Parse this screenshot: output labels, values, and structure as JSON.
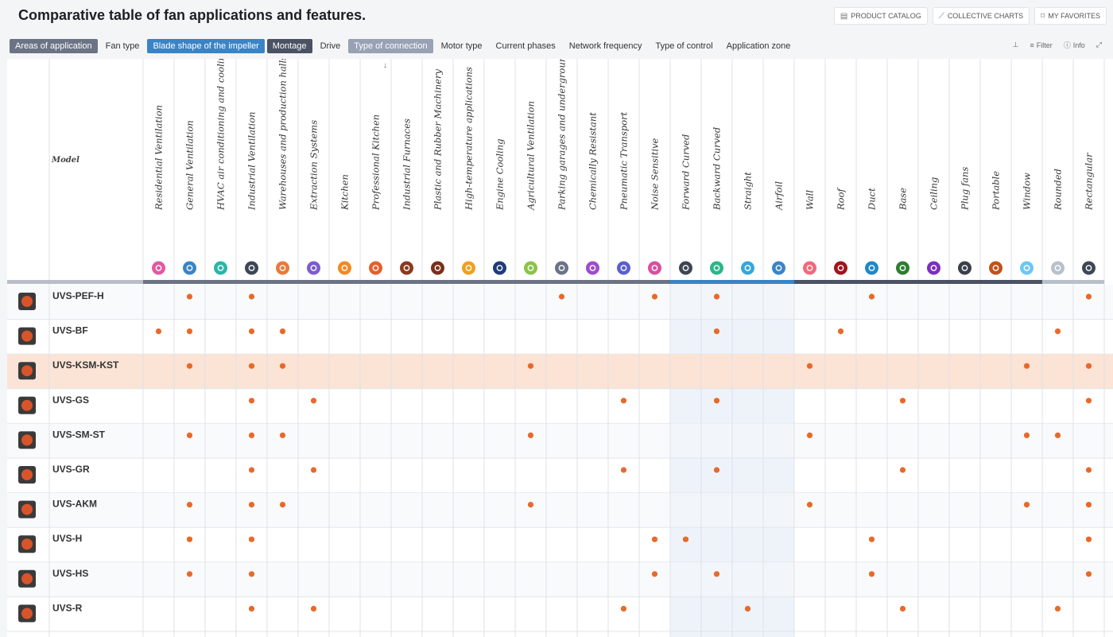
{
  "header": {
    "title": "Comparative table of fan applications and features.",
    "actions": [
      {
        "label": "PRODUCT CATALOG",
        "icon": "catalog-icon"
      },
      {
        "label": "COLLECTIVE CHARTS",
        "icon": "chart-icon"
      },
      {
        "label": "MY FAVORITES",
        "icon": "bookmark-icon"
      }
    ]
  },
  "filters": [
    {
      "label": "Areas of application",
      "state": "active-dark"
    },
    {
      "label": "Fan type",
      "state": "inactive"
    },
    {
      "label": "Blade shape of the impeller",
      "state": "active-blue"
    },
    {
      "label": "Montage",
      "state": "active-navy"
    },
    {
      "label": "Drive",
      "state": "inactive"
    },
    {
      "label": "Type of connection",
      "state": "active-light"
    },
    {
      "label": "Motor type",
      "state": "inactive"
    },
    {
      "label": "Current phases",
      "state": "inactive"
    },
    {
      "label": "Network frequency",
      "state": "inactive"
    },
    {
      "label": "Type of control",
      "state": "inactive"
    },
    {
      "label": "Application zone",
      "state": "inactive"
    }
  ],
  "tools": {
    "pin_icon": "pin-icon",
    "filter_label": "Filter",
    "info_label": "Info",
    "expand_icon": "expand-icon"
  },
  "table": {
    "model_header": "Model",
    "sort_icon": "arrow-down-icon",
    "columns": [
      {
        "label": "Residential Ventilation",
        "icon": "home-icon",
        "color": "#e05aa0",
        "group": "areas"
      },
      {
        "label": "General Ventilation",
        "icon": "airflow-icon",
        "color": "#3a84c6",
        "group": "areas"
      },
      {
        "label": "HVAC air conditioning and cooling",
        "icon": "snowflake-icon",
        "color": "#2bb5a8",
        "group": "areas"
      },
      {
        "label": "Industrial Ventilation",
        "icon": "factory-icon",
        "color": "#3d4655",
        "group": "areas"
      },
      {
        "label": "Warehouses and production halls",
        "icon": "warehouse-icon",
        "color": "#e87a3c",
        "group": "areas"
      },
      {
        "label": "Extraction Systems",
        "icon": "extraction-icon",
        "color": "#7c5ccf",
        "group": "areas"
      },
      {
        "label": "Kitchen",
        "icon": "cutlery-icon",
        "color": "#f08a24",
        "group": "areas"
      },
      {
        "label": "Professional Kitchen",
        "icon": "chef-icon",
        "color": "#e4602c",
        "group": "areas"
      },
      {
        "label": "Industrial Furnaces",
        "icon": "flame-icon",
        "color": "#8a3a1e",
        "group": "areas"
      },
      {
        "label": "Plastic and Rubber Machinery",
        "icon": "machine-icon",
        "color": "#7a2f1a",
        "group": "areas"
      },
      {
        "label": "High-temperature applications",
        "icon": "thermometer-icon",
        "color": "#f0a020",
        "group": "areas"
      },
      {
        "label": "Engine Cooling",
        "icon": "fan-icon",
        "color": "#1f3c7a",
        "group": "areas"
      },
      {
        "label": "Agricultural Ventilation",
        "icon": "tractor-icon",
        "color": "#8bc34a",
        "group": "areas"
      },
      {
        "label": "Parking garages and underground ventilation",
        "icon": "parking-icon",
        "color": "#6b7385",
        "group": "areas"
      },
      {
        "label": "Chemically Resistant",
        "icon": "flask-icon",
        "color": "#9c4dcc",
        "group": "areas"
      },
      {
        "label": "Pneumatic Transport",
        "icon": "transport-icon",
        "color": "#5a5fd0",
        "group": "areas"
      },
      {
        "label": "Noise Sensitive",
        "icon": "mute-icon",
        "color": "#d94fa0",
        "group": "areas"
      },
      {
        "label": "Forward Curved",
        "icon": "forward-curve-icon",
        "color": "#3d4655",
        "group": "blade"
      },
      {
        "label": "Backward Curved",
        "icon": "backward-curve-icon",
        "color": "#2bb58a",
        "group": "blade"
      },
      {
        "label": "Straight",
        "icon": "straight-icon",
        "color": "#35a8d8",
        "group": "blade"
      },
      {
        "label": "Airfoil",
        "icon": "airfoil-icon",
        "color": "#3a84c6",
        "group": "blade"
      },
      {
        "label": "Wall",
        "icon": "wall-icon",
        "color": "#f06a7a",
        "group": "montage"
      },
      {
        "label": "Roof",
        "icon": "roof-icon",
        "color": "#a0141e",
        "group": "montage"
      },
      {
        "label": "Duct",
        "icon": "duct-icon",
        "color": "#1e88c8",
        "group": "montage"
      },
      {
        "label": "Base",
        "icon": "base-icon",
        "color": "#2e7d32",
        "group": "montage"
      },
      {
        "label": "Ceiling",
        "icon": "ceiling-icon",
        "color": "#7b2fbe",
        "group": "montage"
      },
      {
        "label": "Plug fans",
        "icon": "plug-icon",
        "color": "#3a3f4a",
        "group": "montage"
      },
      {
        "label": "Portable",
        "icon": "portable-icon",
        "color": "#c0521a",
        "group": "montage"
      },
      {
        "label": "Window",
        "icon": "window-icon",
        "color": "#6ec6f0",
        "group": "montage"
      },
      {
        "label": "Rounded",
        "icon": "rounded-icon",
        "color": "#b8c0cc",
        "group": "connection"
      },
      {
        "label": "Rectangular",
        "icon": "rectangular-icon",
        "color": "#3d4655",
        "group": "connection"
      }
    ],
    "rows": [
      {
        "model": "UVS-PEF-H",
        "marks": [
          2,
          4,
          14,
          17,
          19,
          24,
          31
        ],
        "highlight": false
      },
      {
        "model": "UVS-BF",
        "marks": [
          1,
          2,
          4,
          5,
          19,
          23,
          30
        ],
        "highlight": false
      },
      {
        "model": "UVS-KSM-KST",
        "marks": [
          2,
          4,
          5,
          13,
          22,
          29,
          31
        ],
        "highlight": true
      },
      {
        "model": "UVS-GS",
        "marks": [
          4,
          6,
          16,
          19,
          25,
          31
        ],
        "highlight": false
      },
      {
        "model": "UVS-SM-ST",
        "marks": [
          2,
          4,
          5,
          13,
          22,
          29,
          30
        ],
        "highlight": false
      },
      {
        "model": "UVS-GR",
        "marks": [
          4,
          6,
          16,
          19,
          25,
          31
        ],
        "highlight": false
      },
      {
        "model": "UVS-AKM",
        "marks": [
          2,
          4,
          5,
          13,
          22,
          29,
          31
        ],
        "highlight": false
      },
      {
        "model": "UVS-H",
        "marks": [
          2,
          4,
          17,
          18,
          24,
          31
        ],
        "highlight": false
      },
      {
        "model": "UVS-HS",
        "marks": [
          2,
          4,
          17,
          19,
          24,
          31
        ],
        "highlight": false
      },
      {
        "model": "UVS-R",
        "marks": [
          4,
          6,
          16,
          20,
          25,
          30
        ],
        "highlight": false
      }
    ],
    "colors": {
      "dot": "#e8692a",
      "highlight_row": "#fbe3d6",
      "group_areas": "#6b7385",
      "group_blade": "#3a84c6",
      "group_montage": "#4a5263",
      "group_connection": "#b8c0cc"
    }
  }
}
